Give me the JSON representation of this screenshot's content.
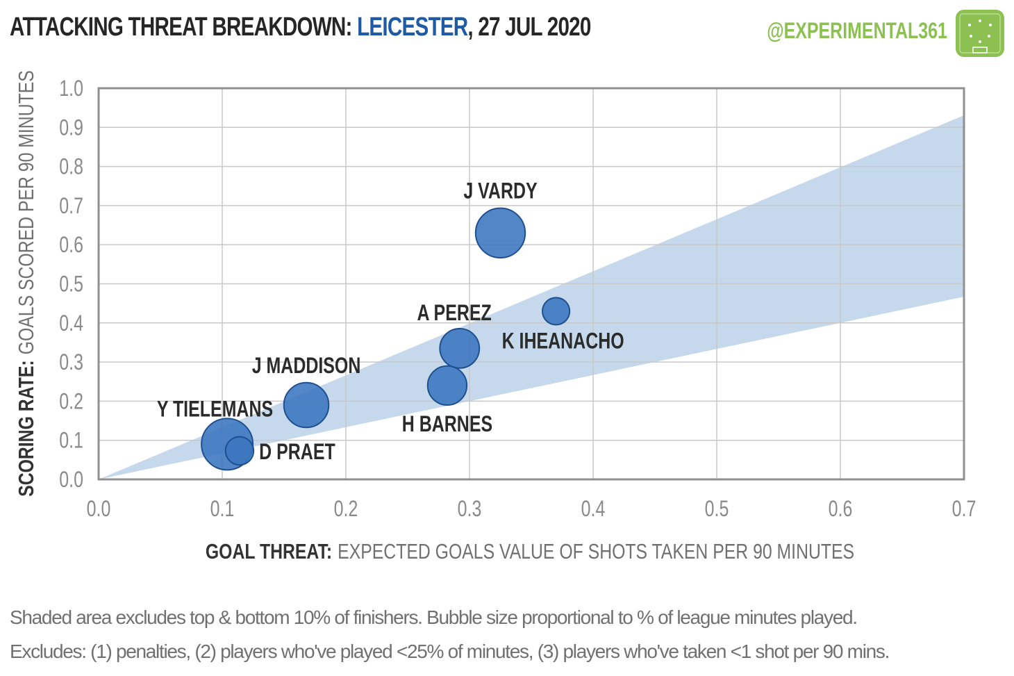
{
  "header": {
    "title_prefix": "ATTACKING THREAT BREAKDOWN: ",
    "title_team": "LEICESTER",
    "title_suffix": ", 27 JUL 2020",
    "handle": "@EXPERIMENTAL361",
    "logo_icon": "pitch-icon"
  },
  "colors": {
    "team": "#1f5aa6",
    "bubble_fill": "#3a75bf",
    "bubble_stroke": "#1f4f8f",
    "band": "#c6d9ec",
    "brand": "#8cc152"
  },
  "chart_data": {
    "type": "scatter",
    "title": "ATTACKING THREAT BREAKDOWN: LEICESTER, 27 JUL 2020",
    "xlabel_bold": "GOAL THREAT:",
    "xlabel_rest": "EXPECTED GOALS VALUE OF SHOTS TAKEN PER 90 MINUTES",
    "ylabel_bold": "SCORING RATE:",
    "ylabel_rest": "GOALS SCORED PER 90 MINUTES",
    "xlim": [
      0,
      0.7
    ],
    "ylim": [
      0,
      1.0
    ],
    "x_ticks": [
      "0.0",
      "0.1",
      "0.2",
      "0.3",
      "0.4",
      "0.5",
      "0.6",
      "0.7"
    ],
    "y_ticks": [
      "0.0",
      "0.1",
      "0.2",
      "0.3",
      "0.4",
      "0.5",
      "0.6",
      "0.7",
      "0.8",
      "0.9",
      "1.0"
    ],
    "grid": true,
    "band": {
      "lower_slope": 0.667,
      "upper_slope": 1.33
    },
    "points": [
      {
        "name": "J VARDY",
        "x": 0.325,
        "y": 0.63,
        "minutes_share": 0.93,
        "label_pos": "above"
      },
      {
        "name": "K IHEANACHO",
        "x": 0.37,
        "y": 0.43,
        "minutes_share": 0.28,
        "label_pos": "below-right"
      },
      {
        "name": "A PEREZ",
        "x": 0.292,
        "y": 0.335,
        "minutes_share": 0.59,
        "label_pos": "above-left"
      },
      {
        "name": "H BARNES",
        "x": 0.282,
        "y": 0.24,
        "minutes_share": 0.58,
        "label_pos": "below"
      },
      {
        "name": "J MADDISON",
        "x": 0.168,
        "y": 0.19,
        "minutes_share": 0.76,
        "label_pos": "above"
      },
      {
        "name": "Y TIELEMANS",
        "x": 0.104,
        "y": 0.09,
        "minutes_share": 1.0,
        "label_pos": "above-left"
      },
      {
        "name": "D PRAET",
        "x": 0.114,
        "y": 0.073,
        "minutes_share": 0.3,
        "label_pos": "right"
      }
    ]
  },
  "footnote": {
    "line1": "Shaded area excludes top & bottom 10% of finishers. Bubble size proportional to % of league minutes played.",
    "line2": "Excludes: (1) penalties, (2) players who've played <25% of minutes, (3) players who've taken <1 shot per 90 mins."
  }
}
